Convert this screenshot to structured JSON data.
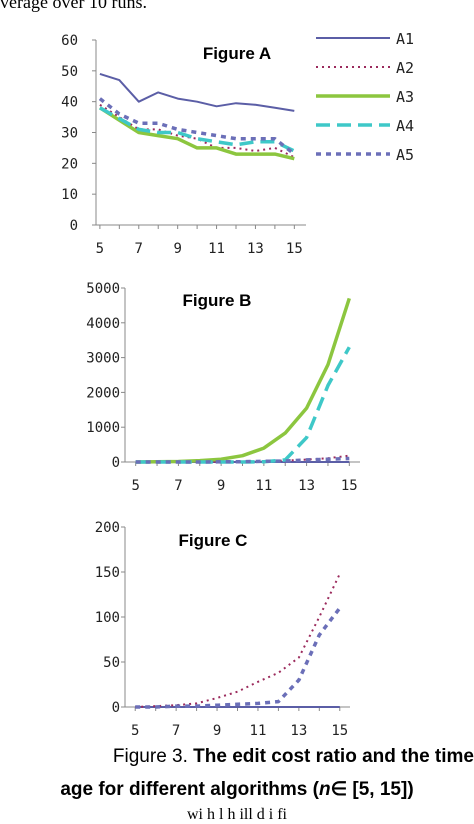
{
  "captions": {
    "top_fragment": "verage over 10 runs.",
    "fig_label": "Figure 3.",
    "line1_bold": " The edit cost ratio and the time",
    "line2_a": "age for different algorithms (",
    "line2_n": "n",
    "line2_b": "∈ [5, 15])",
    "line3": "wi h  l  h  ill  d i  fi"
  },
  "colors": {
    "A1": "#5b5ea6",
    "A2": "#9b2a5c",
    "A3": "#8cc63f",
    "A4": "#3ec8c8",
    "A5": "#6b6fb8",
    "axis": "#888888"
  },
  "legend": {
    "position": "right of Figure A",
    "entries": [
      "A1",
      "A2",
      "A3",
      "A4",
      "A5"
    ]
  },
  "chart_data": [
    {
      "type": "line",
      "title": "Figure A",
      "x": [
        5,
        6,
        7,
        8,
        9,
        10,
        11,
        12,
        13,
        14,
        15
      ],
      "xticks": [
        "5",
        "7",
        "9",
        "11",
        "13",
        "15"
      ],
      "ylim": [
        0,
        60
      ],
      "yticks": [
        "0",
        "10",
        "20",
        "30",
        "40",
        "50",
        "60"
      ],
      "series": [
        {
          "name": "A1",
          "style": "solid",
          "values": [
            49,
            47,
            40,
            43,
            41,
            40,
            38.5,
            39.5,
            39,
            38,
            37
          ]
        },
        {
          "name": "A2",
          "style": "dotted",
          "values": [
            39,
            35,
            31,
            31,
            29,
            28,
            25,
            25,
            24,
            25,
            22
          ]
        },
        {
          "name": "A3",
          "style": "thick",
          "values": [
            38,
            34,
            30,
            29,
            28,
            25,
            25,
            23,
            23,
            23,
            21.5
          ]
        },
        {
          "name": "A4",
          "style": "dashed",
          "values": [
            38,
            34.5,
            31,
            30,
            30,
            28,
            27,
            26,
            27,
            27,
            24
          ]
        },
        {
          "name": "A5",
          "style": "dash-dot",
          "values": [
            41,
            36,
            33,
            33,
            31,
            30,
            29,
            28,
            28,
            28,
            23
          ]
        }
      ]
    },
    {
      "type": "line",
      "title": "Figure B",
      "x": [
        5,
        6,
        7,
        8,
        9,
        10,
        11,
        12,
        13,
        14,
        15
      ],
      "xticks": [
        "5",
        "7",
        "9",
        "11",
        "13",
        "15"
      ],
      "ylim": [
        0,
        5000
      ],
      "yticks": [
        "0",
        "1000",
        "2000",
        "3000",
        "4000",
        "5000"
      ],
      "series": [
        {
          "name": "A1",
          "style": "solid",
          "values": [
            0,
            0,
            0,
            0,
            0,
            0,
            0,
            0,
            0,
            0,
            0
          ]
        },
        {
          "name": "A2",
          "style": "dotted",
          "values": [
            0,
            0,
            0,
            5,
            10,
            15,
            25,
            40,
            70,
            110,
            180
          ]
        },
        {
          "name": "A3",
          "style": "thick",
          "values": [
            0,
            5,
            15,
            40,
            80,
            180,
            400,
            830,
            1550,
            2800,
            4700
          ]
        },
        {
          "name": "A4",
          "style": "dashed",
          "values": [
            0,
            0,
            0,
            0,
            0,
            0,
            10,
            60,
            700,
            2200,
            3300
          ]
        },
        {
          "name": "A5",
          "style": "dash-dot",
          "values": [
            0,
            0,
            0,
            0,
            5,
            10,
            20,
            30,
            60,
            80,
            100
          ]
        }
      ]
    },
    {
      "type": "line",
      "title": "Figure C",
      "x": [
        5,
        6,
        7,
        8,
        9,
        10,
        11,
        12,
        13,
        14,
        15
      ],
      "xticks": [
        "5",
        "7",
        "9",
        "11",
        "13",
        "15"
      ],
      "ylim": [
        0,
        200
      ],
      "yticks": [
        "0",
        "50",
        "100",
        "150",
        "200"
      ],
      "series": [
        {
          "name": "A1",
          "style": "solid",
          "values": [
            0,
            0,
            0,
            0,
            0,
            0,
            0,
            0,
            0,
            0,
            0
          ]
        },
        {
          "name": "A2",
          "style": "dotted",
          "values": [
            0,
            1,
            2,
            4,
            10,
            17,
            28,
            38,
            55,
            100,
            148
          ]
        },
        {
          "name": "A5",
          "style": "dash-dot",
          "values": [
            0,
            0,
            1,
            1,
            2,
            3,
            4,
            6,
            30,
            80,
            110
          ]
        }
      ]
    }
  ]
}
